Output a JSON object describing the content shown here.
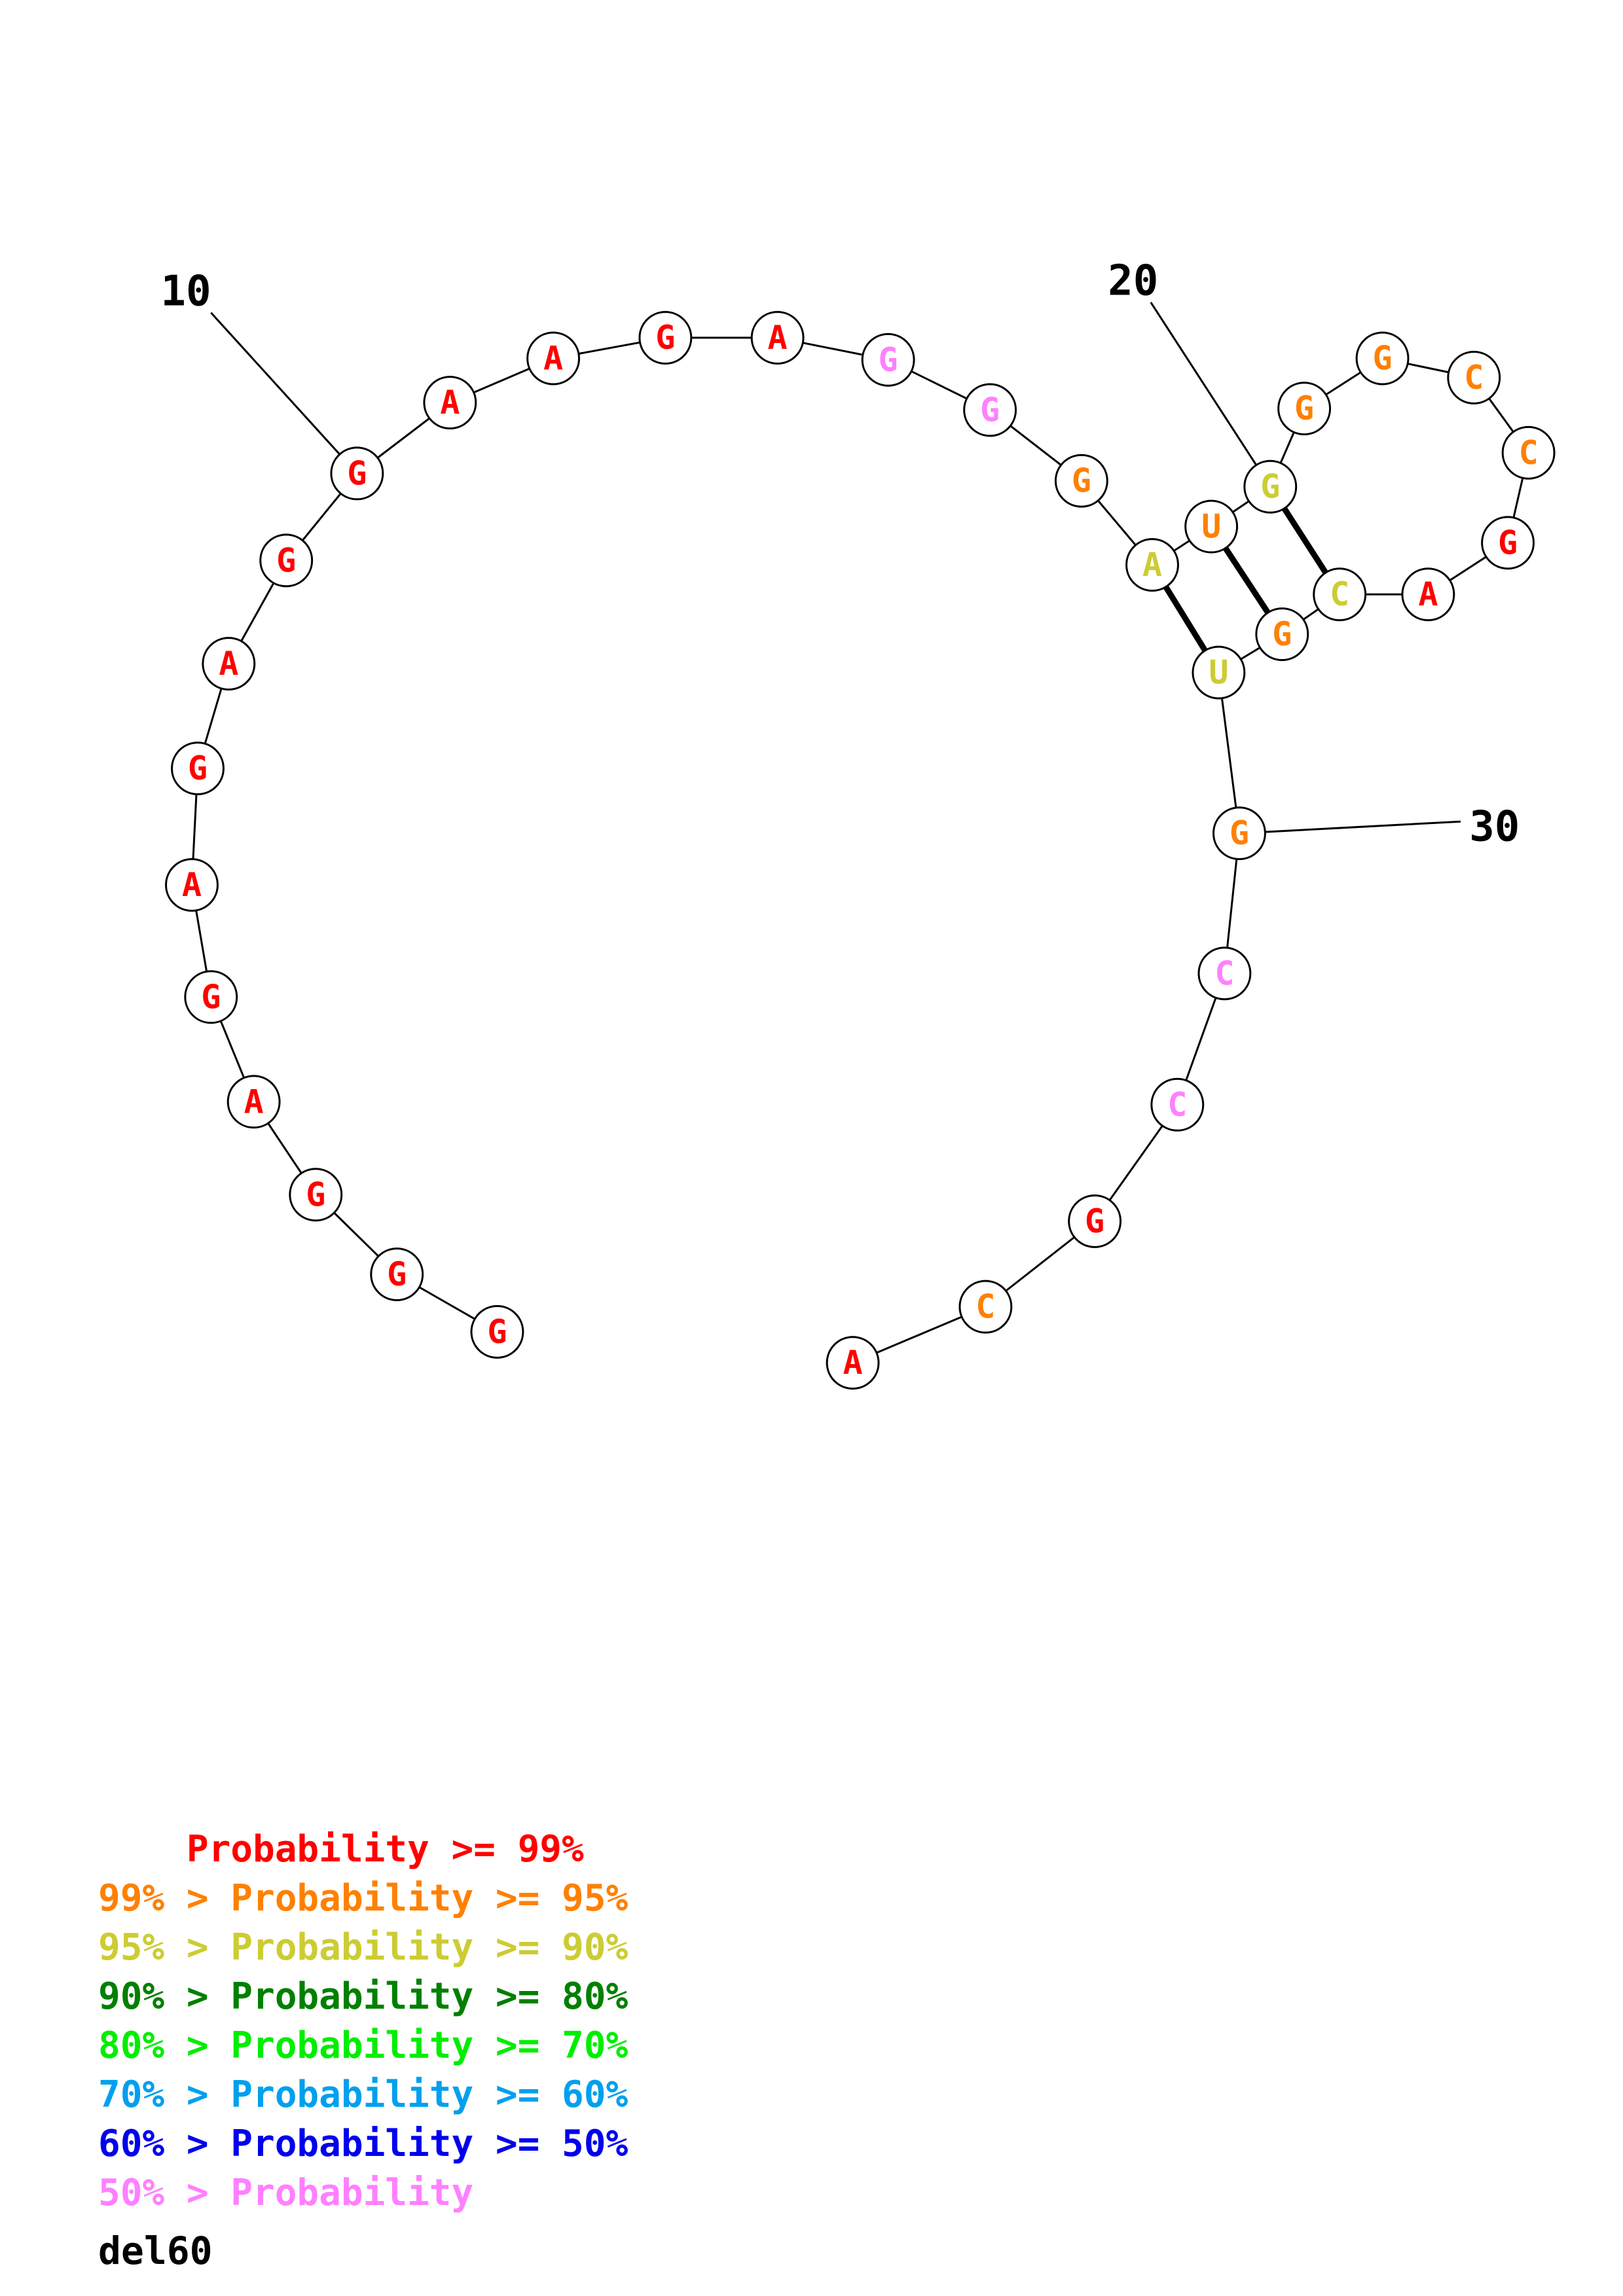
{
  "structure": {
    "name": "del60",
    "nucleotides": [
      {
        "i": 1,
        "base": "G",
        "cls": "ge99"
      },
      {
        "i": 2,
        "base": "G",
        "cls": "ge99"
      },
      {
        "i": 3,
        "base": "G",
        "cls": "ge99"
      },
      {
        "i": 4,
        "base": "A",
        "cls": "ge99"
      },
      {
        "i": 5,
        "base": "G",
        "cls": "ge99"
      },
      {
        "i": 6,
        "base": "A",
        "cls": "ge99"
      },
      {
        "i": 7,
        "base": "G",
        "cls": "ge99"
      },
      {
        "i": 8,
        "base": "A",
        "cls": "ge99"
      },
      {
        "i": 9,
        "base": "G",
        "cls": "ge99"
      },
      {
        "i": 10,
        "base": "G",
        "cls": "ge99"
      },
      {
        "i": 11,
        "base": "A",
        "cls": "ge99"
      },
      {
        "i": 12,
        "base": "A",
        "cls": "ge99"
      },
      {
        "i": 13,
        "base": "G",
        "cls": "ge99"
      },
      {
        "i": 14,
        "base": "A",
        "cls": "ge99"
      },
      {
        "i": 15,
        "base": "G",
        "cls": "lt50"
      },
      {
        "i": 16,
        "base": "G",
        "cls": "lt50"
      },
      {
        "i": 17,
        "base": "G",
        "cls": "ge95"
      },
      {
        "i": 18,
        "base": "A",
        "cls": "ge90"
      },
      {
        "i": 19,
        "base": "U",
        "cls": "ge95"
      },
      {
        "i": 20,
        "base": "G",
        "cls": "ge90"
      },
      {
        "i": 21,
        "base": "G",
        "cls": "ge95"
      },
      {
        "i": 22,
        "base": "G",
        "cls": "ge95"
      },
      {
        "i": 23,
        "base": "C",
        "cls": "ge95"
      },
      {
        "i": 24,
        "base": "C",
        "cls": "ge95"
      },
      {
        "i": 25,
        "base": "G",
        "cls": "ge99"
      },
      {
        "i": 26,
        "base": "A",
        "cls": "ge99"
      },
      {
        "i": 27,
        "base": "C",
        "cls": "ge90"
      },
      {
        "i": 28,
        "base": "G",
        "cls": "ge95"
      },
      {
        "i": 29,
        "base": "U",
        "cls": "ge90"
      },
      {
        "i": 30,
        "base": "G",
        "cls": "ge95"
      },
      {
        "i": 31,
        "base": "C",
        "cls": "lt50"
      },
      {
        "i": 32,
        "base": "C",
        "cls": "lt50"
      },
      {
        "i": 33,
        "base": "G",
        "cls": "ge99"
      },
      {
        "i": 34,
        "base": "C",
        "cls": "ge95"
      },
      {
        "i": 35,
        "base": "A",
        "cls": "ge99"
      }
    ],
    "pairs": [
      [
        18,
        29
      ],
      [
        19,
        28
      ],
      [
        20,
        27
      ]
    ],
    "position_labels": [
      {
        "i": 10,
        "text": "10"
      },
      {
        "i": 20,
        "text": "20"
      },
      {
        "i": 30,
        "text": "30"
      }
    ]
  },
  "colors": {
    "ge99": "#ff0000",
    "ge95": "#ff8000",
    "ge90": "#cccc33",
    "ge80": "#008000",
    "ge70": "#00ee00",
    "ge60": "#00a0ee",
    "ge50": "#0000ee",
    "lt50": "#ff80ff"
  },
  "legend": [
    {
      "text": "    Probability >= 99%",
      "color": "#ff0000"
    },
    {
      "text": "99% > Probability >= 95%",
      "color": "#ff8000"
    },
    {
      "text": "95% > Probability >= 90%",
      "color": "#cccc33"
    },
    {
      "text": "90% > Probability >= 80%",
      "color": "#008000"
    },
    {
      "text": "80% > Probability >= 70%",
      "color": "#00ee00"
    },
    {
      "text": "70% > Probability >= 60%",
      "color": "#00a0ee"
    },
    {
      "text": "60% > Probability >= 50%",
      "color": "#0000ee"
    },
    {
      "text": "50% > Probability",
      "color": "#ff80ff"
    }
  ]
}
